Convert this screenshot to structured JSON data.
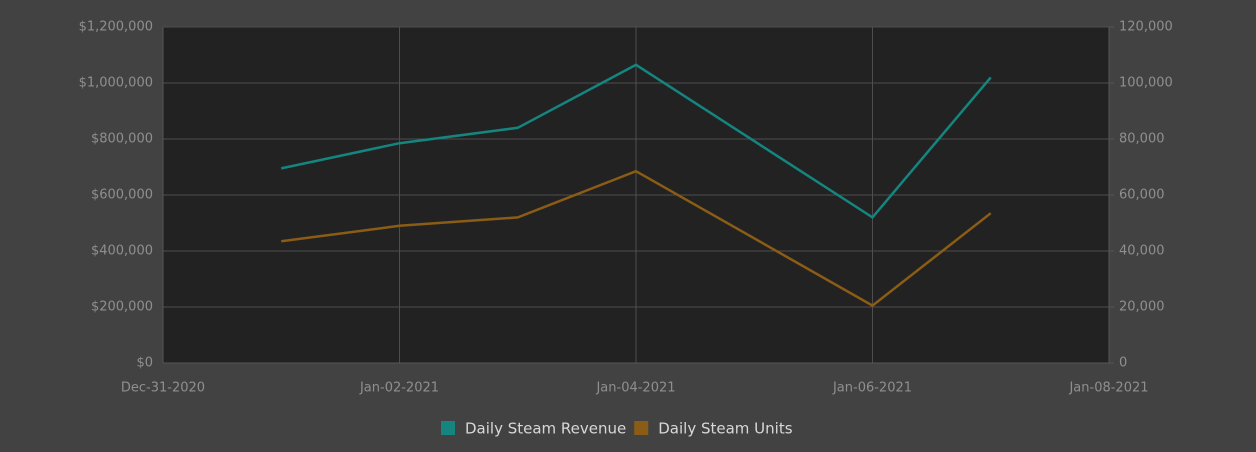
{
  "chart_data": {
    "type": "line",
    "x": [
      "2021-01-01",
      "2021-01-02",
      "2021-01-03",
      "2021-01-04",
      "2021-01-06",
      "2021-01-07"
    ],
    "xlim": [
      "2020-12-31",
      "2021-01-08"
    ],
    "xticks": [
      {
        "value": "2020-12-31",
        "label": "Dec-31-2020"
      },
      {
        "value": "2021-01-02",
        "label": "Jan-02-2021"
      },
      {
        "value": "2021-01-04",
        "label": "Jan-04-2021"
      },
      {
        "value": "2021-01-06",
        "label": "Jan-06-2021"
      },
      {
        "value": "2021-01-08",
        "label": "Jan-08-2021"
      }
    ],
    "ylim": [
      0,
      1200000
    ],
    "yticks": [
      {
        "value": 0,
        "label": "$0"
      },
      {
        "value": 200000,
        "label": "$200,000"
      },
      {
        "value": 400000,
        "label": "$400,000"
      },
      {
        "value": 600000,
        "label": "$600,000"
      },
      {
        "value": 800000,
        "label": "$800,000"
      },
      {
        "value": 1000000,
        "label": "$1,000,000"
      },
      {
        "value": 1200000,
        "label": "$1,200,000"
      }
    ],
    "y2lim": [
      0,
      120000
    ],
    "y2ticks": [
      0,
      {
        "value": 20000,
        "label": "20,000"
      },
      {
        "value": 40000,
        "label": "40,000"
      },
      {
        "value": 60000,
        "label": "60,000"
      },
      {
        "value": 80000,
        "label": "80,000"
      },
      {
        "value": 100000,
        "label": "100,000"
      },
      {
        "value": 120000,
        "label": "120,000"
      }
    ],
    "grid": true,
    "legend": "bottom",
    "series": [
      {
        "name": "Daily Steam Revenue",
        "color": "#14857f",
        "values": [
          695000,
          785000,
          840000,
          1065000,
          520000,
          1020000
        ]
      },
      {
        "name": "Daily Steam Units",
        "color": "#8b5c15",
        "axis": "y2",
        "values": [
          43500,
          49000,
          52000,
          68500,
          20500,
          53500
        ]
      }
    ]
  }
}
